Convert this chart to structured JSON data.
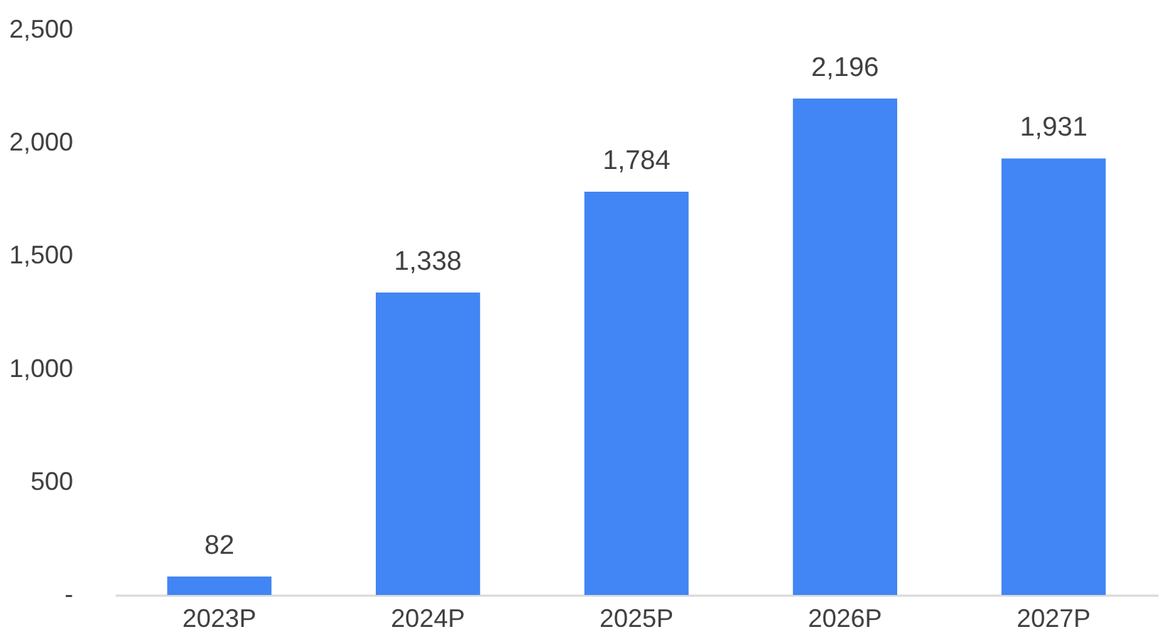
{
  "chart_data": {
    "type": "bar",
    "categories": [
      "2023P",
      "2024P",
      "2025P",
      "2026P",
      "2027P"
    ],
    "values": [
      82,
      1338,
      1784,
      2196,
      1931
    ],
    "color": "#4285f4",
    "ylim": [
      0,
      2500
    ],
    "yticks": [
      {
        "value": 0,
        "label": "-"
      },
      {
        "value": 500,
        "label": "500"
      },
      {
        "value": 1000,
        "label": "1,000"
      },
      {
        "value": 1500,
        "label": "1,500"
      },
      {
        "value": 2000,
        "label": "2,000"
      },
      {
        "value": 2500,
        "label": "2,500"
      }
    ],
    "value_labels": [
      "82",
      "1,338",
      "1,784",
      "2,196",
      "1,931"
    ],
    "grid": false
  }
}
